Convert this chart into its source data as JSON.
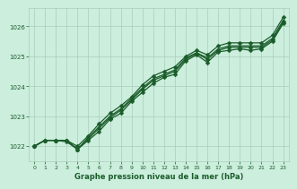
{
  "bg_color": "#cceedd",
  "grid_color": "#aaccbb",
  "line_color": "#1a5c2a",
  "title": "Graphe pression niveau de la mer (hPa)",
  "xlim": [
    -0.5,
    23.5
  ],
  "ylim": [
    1021.5,
    1026.6
  ],
  "yticks": [
    1022,
    1023,
    1024,
    1025,
    1026
  ],
  "xticks": [
    0,
    1,
    2,
    3,
    4,
    5,
    6,
    7,
    8,
    9,
    10,
    11,
    12,
    13,
    14,
    15,
    16,
    17,
    18,
    19,
    20,
    21,
    22,
    23
  ],
  "series": [
    [
      1022.0,
      1022.2,
      1022.2,
      1022.2,
      1021.9,
      1022.2,
      1022.5,
      1022.9,
      1023.1,
      1023.5,
      1023.8,
      1024.1,
      1024.3,
      1024.4,
      1024.85,
      1025.05,
      1024.8,
      1025.15,
      1025.2,
      1025.25,
      1025.2,
      1025.25,
      1025.5,
      1026.1
    ],
    [
      1022.0,
      1022.2,
      1022.2,
      1022.2,
      1021.9,
      1022.25,
      1022.6,
      1022.95,
      1023.2,
      1023.55,
      1023.9,
      1024.2,
      1024.35,
      1024.5,
      1024.9,
      1025.1,
      1024.9,
      1025.2,
      1025.3,
      1025.3,
      1025.3,
      1025.3,
      1025.55,
      1026.15
    ],
    [
      1022.0,
      1022.2,
      1022.2,
      1022.15,
      1021.9,
      1022.3,
      1022.65,
      1023.0,
      1023.25,
      1023.6,
      1023.95,
      1024.25,
      1024.4,
      1024.55,
      1024.95,
      1025.12,
      1024.95,
      1025.25,
      1025.35,
      1025.35,
      1025.35,
      1025.35,
      1025.6,
      1026.2
    ],
    [
      1022.0,
      1022.2,
      1022.2,
      1022.2,
      1022.0,
      1022.35,
      1022.75,
      1023.1,
      1023.35,
      1023.65,
      1024.05,
      1024.35,
      1024.5,
      1024.65,
      1025.0,
      1025.2,
      1025.05,
      1025.35,
      1025.45,
      1025.45,
      1025.45,
      1025.45,
      1025.7,
      1026.3
    ]
  ],
  "marker_sizes": [
    2.5,
    2.5,
    2.5,
    2.5
  ],
  "title_fontsize": 6,
  "tick_fontsize": 5,
  "linewidth": 0.9
}
